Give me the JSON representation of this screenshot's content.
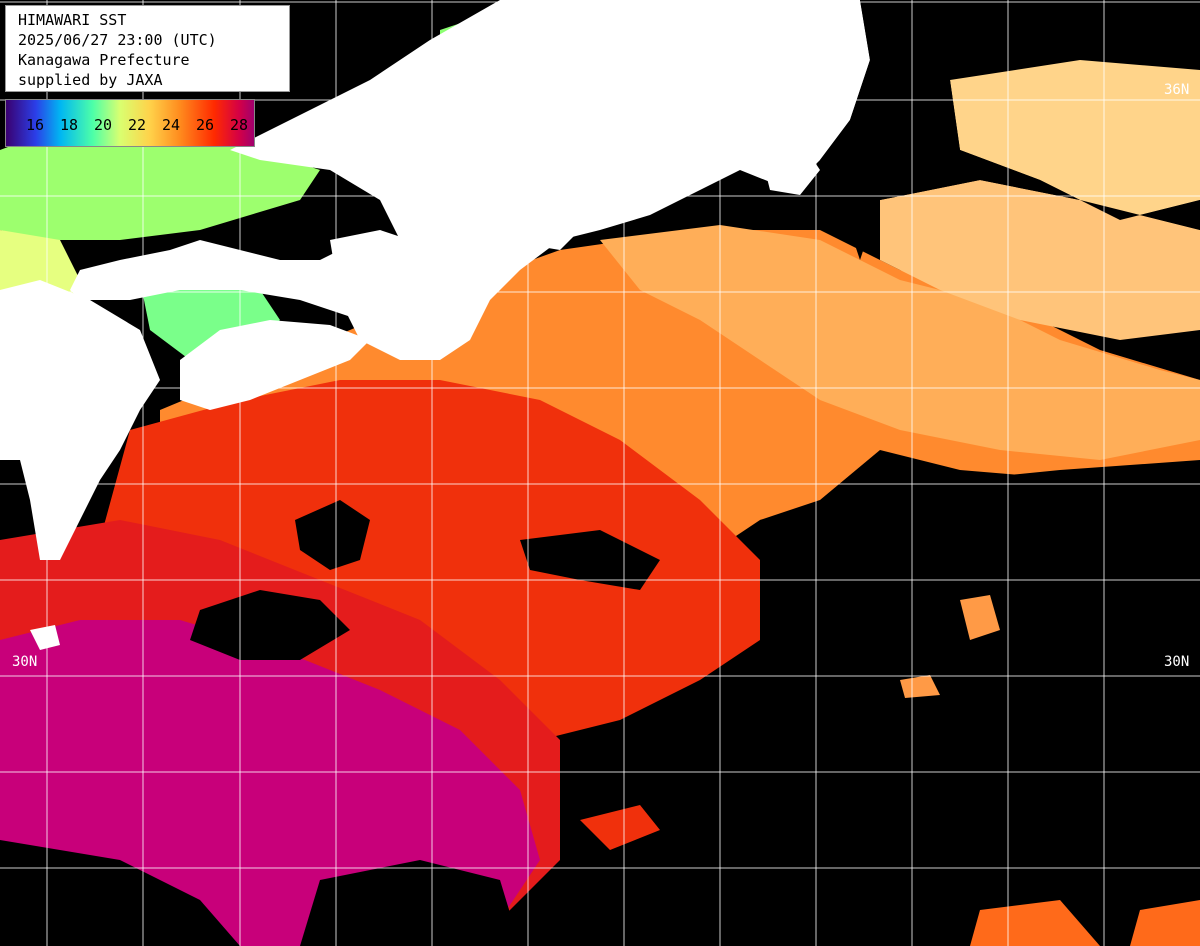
{
  "header": {
    "title": "HIMAWARI SST",
    "datetime": "2025/06/27 23:00 (UTC)",
    "region": "Kanagawa Prefecture",
    "credit": "supplied by JAXA"
  },
  "legend": {
    "unit": "",
    "ticks": [
      "16",
      "18",
      "20",
      "22",
      "24",
      "26",
      "28"
    ]
  },
  "grid_labels": {
    "lat_36_right": "36N",
    "lat_30_left": "30N",
    "lat_30_right": "30N"
  },
  "colors": {
    "land": "#ffffff",
    "no_data_cloud": "#000000",
    "sst_high": "#c8007a",
    "sst_mid": "#ff3a00",
    "sst_low": "#ffb04a",
    "gridline": "#ffffff"
  }
}
